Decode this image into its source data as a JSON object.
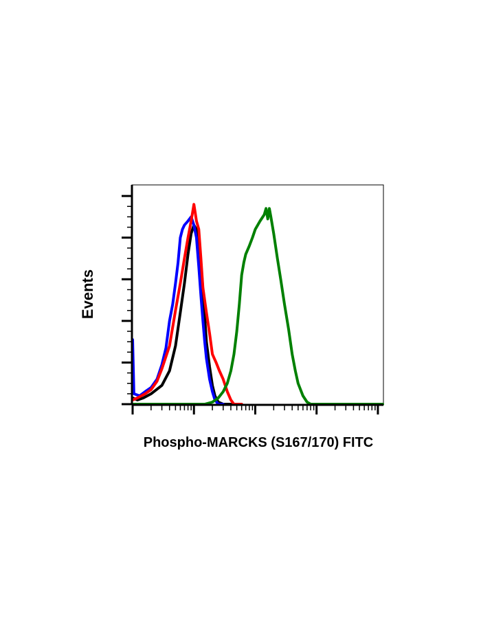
{
  "chart_data": {
    "type": "line",
    "chart_kind": "flow cytometry histogram overlay",
    "xlabel": "Phospho-MARCKS (S167/170) FITC",
    "ylabel": "Events",
    "x_scale": "log",
    "xlim": [
      1,
      12000
    ],
    "ylim": [
      0,
      105
    ],
    "x_tick_labels_shown": false,
    "y_tick_labels_shown": false,
    "grid": false,
    "legend": "none",
    "series": [
      {
        "color": "#000000",
        "points": [
          [
            1,
            3
          ],
          [
            1.2,
            2
          ],
          [
            1.5,
            3
          ],
          [
            2,
            5
          ],
          [
            3,
            9
          ],
          [
            4,
            16
          ],
          [
            5,
            28
          ],
          [
            6,
            44
          ],
          [
            7,
            58
          ],
          [
            8,
            72
          ],
          [
            9,
            82
          ],
          [
            10,
            86
          ],
          [
            11,
            84
          ],
          [
            12,
            78
          ],
          [
            13,
            68
          ],
          [
            14,
            55
          ],
          [
            15,
            42
          ],
          [
            16,
            30
          ],
          [
            18,
            18
          ],
          [
            20,
            9
          ],
          [
            22,
            4
          ],
          [
            25,
            1
          ],
          [
            30,
            0
          ],
          [
            40,
            0
          ]
        ]
      },
      {
        "color": "#0000ff",
        "points": [
          [
            1,
            31
          ],
          [
            1.05,
            5
          ],
          [
            1.3,
            4
          ],
          [
            1.6,
            6
          ],
          [
            2,
            8
          ],
          [
            2.5,
            12
          ],
          [
            3,
            19
          ],
          [
            3.5,
            27
          ],
          [
            4,
            40
          ],
          [
            4.5,
            48
          ],
          [
            5,
            58
          ],
          [
            5.5,
            68
          ],
          [
            6,
            80
          ],
          [
            6.5,
            84
          ],
          [
            7,
            86
          ],
          [
            8,
            88
          ],
          [
            9,
            90
          ],
          [
            10,
            86
          ],
          [
            11,
            80
          ],
          [
            12,
            66
          ],
          [
            13,
            52
          ],
          [
            14,
            40
          ],
          [
            15,
            30
          ],
          [
            16,
            22
          ],
          [
            18,
            12
          ],
          [
            20,
            6
          ],
          [
            22,
            2
          ],
          [
            25,
            0
          ],
          [
            30,
            0
          ]
        ]
      },
      {
        "color": "#ff0000",
        "points": [
          [
            1,
            2
          ],
          [
            1.2,
            3
          ],
          [
            1.6,
            5
          ],
          [
            2,
            7
          ],
          [
            2.5,
            11
          ],
          [
            3,
            17
          ],
          [
            4,
            28
          ],
          [
            5,
            45
          ],
          [
            6,
            58
          ],
          [
            7,
            70
          ],
          [
            8,
            80
          ],
          [
            9,
            88
          ],
          [
            10,
            96
          ],
          [
            10.5,
            92
          ],
          [
            11,
            88
          ],
          [
            12,
            84
          ],
          [
            13,
            70
          ],
          [
            14,
            56
          ],
          [
            16,
            44
          ],
          [
            18,
            34
          ],
          [
            20,
            24
          ],
          [
            23,
            20
          ],
          [
            26,
            16
          ],
          [
            30,
            12
          ],
          [
            35,
            6
          ],
          [
            40,
            2
          ],
          [
            45,
            0
          ],
          [
            60,
            0
          ]
        ]
      },
      {
        "color": "#008000",
        "points": [
          [
            1,
            0
          ],
          [
            15,
            0
          ],
          [
            20,
            1
          ],
          [
            25,
            3
          ],
          [
            30,
            6
          ],
          [
            35,
            10
          ],
          [
            40,
            16
          ],
          [
            45,
            24
          ],
          [
            50,
            35
          ],
          [
            55,
            48
          ],
          [
            60,
            62
          ],
          [
            65,
            68
          ],
          [
            70,
            72
          ],
          [
            80,
            76
          ],
          [
            90,
            80
          ],
          [
            100,
            84
          ],
          [
            120,
            88
          ],
          [
            140,
            91
          ],
          [
            150,
            94
          ],
          [
            160,
            89
          ],
          [
            170,
            94
          ],
          [
            180,
            90
          ],
          [
            200,
            82
          ],
          [
            230,
            70
          ],
          [
            260,
            60
          ],
          [
            300,
            48
          ],
          [
            350,
            36
          ],
          [
            400,
            24
          ],
          [
            450,
            16
          ],
          [
            500,
            10
          ],
          [
            600,
            4
          ],
          [
            700,
            1
          ],
          [
            800,
            0
          ],
          [
            12000,
            0
          ]
        ]
      }
    ]
  }
}
